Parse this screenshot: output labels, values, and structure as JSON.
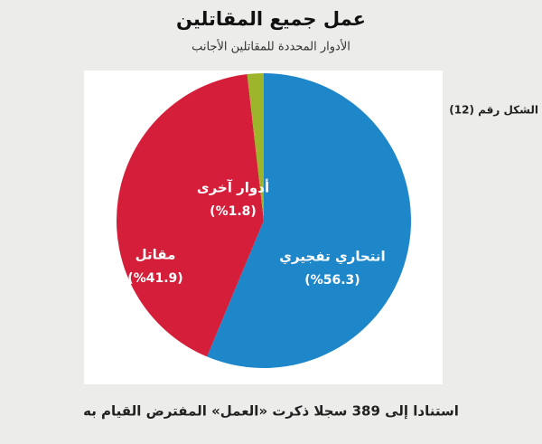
{
  "chart_data": {
    "type": "pie",
    "title": "عمل جميع المقاتلين",
    "subtitle": "الأدوار المحددة للمقاتلين الأجانب",
    "figure_label": "الشكل رقم (12)",
    "footnote": "استنادا إلى 389 سجلا ذكرت «العمل» المفترض القيام به",
    "categories": [
      "انتحاري تفجيري",
      "مقاتل",
      "أدوار آخرى"
    ],
    "values": [
      56.3,
      41.9,
      1.8
    ],
    "value_labels": [
      "(%56.3)",
      "(%41.9)",
      "(%1.8)"
    ],
    "colors": [
      "#1e87c9",
      "#d51f3a",
      "#9db52b"
    ]
  }
}
